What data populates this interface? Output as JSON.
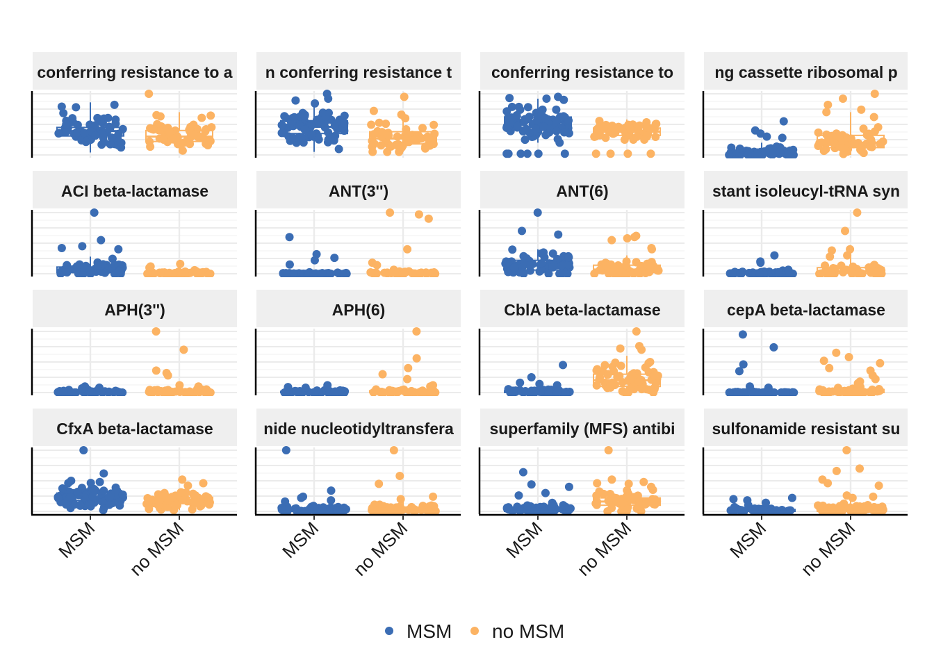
{
  "chart_data": {
    "type": "box-jitter",
    "grid": true,
    "legend_position": "bottom",
    "categories": [
      "MSM",
      "no MSM"
    ],
    "colors": {
      "MSM": "#3b6db4",
      "no MSM": "#fcb363"
    },
    "legend": [
      {
        "label": "MSM",
        "color": "#3b6db4"
      },
      {
        "label": "no MSM",
        "color": "#fcb363"
      }
    ],
    "panels": [
      {
        "title": "conferring resistance to a",
        "boxes": [
          {
            "q1": 0.31,
            "median": 0.39,
            "q3": 0.45,
            "min": 0.04,
            "max": 0.86
          },
          {
            "q1": 0.22,
            "median": 0.3,
            "q3": 0.4,
            "min": 0.04,
            "max": 0.7
          }
        ],
        "points": [
          {
            "n": 70,
            "lo": 0.04,
            "hi": 0.84,
            "mode": 0.4,
            "spread": 0.14,
            "out": [
              0.82,
              0.78,
              0.79
            ]
          },
          {
            "n": 55,
            "lo": 0.04,
            "hi": 0.7,
            "mode": 0.3,
            "spread": 0.13,
            "out": [
              1.0,
              0.65,
              0.63
            ]
          }
        ]
      },
      {
        "title": "n conferring resistance t",
        "boxes": [
          {
            "q1": 0.35,
            "median": 0.46,
            "q3": 0.56,
            "min": 0.05,
            "max": 0.85
          },
          {
            "q1": 0.18,
            "median": 0.27,
            "q3": 0.38,
            "min": 0.05,
            "max": 0.65
          }
        ],
        "points": [
          {
            "n": 75,
            "lo": 0.05,
            "hi": 0.92,
            "mode": 0.46,
            "spread": 0.15,
            "out": [
              1.0,
              0.92,
              0.89
            ]
          },
          {
            "n": 55,
            "lo": 0.05,
            "hi": 0.7,
            "mode": 0.27,
            "spread": 0.13,
            "out": [
              0.95,
              0.72,
              0.6
            ]
          }
        ]
      },
      {
        "title": "conferring resistance to",
        "boxes": [
          {
            "q1": 0.45,
            "median": 0.54,
            "q3": 0.62,
            "min": 0.2,
            "max": 0.92
          },
          {
            "q1": 0.32,
            "median": 0.38,
            "q3": 0.44,
            "min": 0.2,
            "max": 0.58
          }
        ],
        "points": [
          {
            "n": 80,
            "lo": 0.22,
            "hi": 0.93,
            "mode": 0.54,
            "spread": 0.12,
            "out": [
              0.02,
              0.02,
              0.02,
              0.02,
              0.02,
              0.02,
              0.2,
              0.92,
              0.95,
              0.9
            ]
          },
          {
            "n": 55,
            "lo": 0.25,
            "hi": 0.58,
            "mode": 0.38,
            "spread": 0.08,
            "out": [
              0.02,
              0.02,
              0.02,
              0.02
            ]
          }
        ]
      },
      {
        "title": "ng cassette ribosomal p",
        "boxes": [
          {
            "q1": 0.0,
            "median": 0.03,
            "q3": 0.08,
            "min": 0.0,
            "max": 0.2
          },
          {
            "q1": 0.12,
            "median": 0.2,
            "q3": 0.32,
            "min": 0.0,
            "max": 0.7
          }
        ],
        "points": [
          {
            "n": 60,
            "lo": 0.0,
            "hi": 0.18,
            "mode": 0.03,
            "spread": 0.04,
            "out": [
              0.55,
              0.4,
              0.35,
              0.3,
              0.28
            ]
          },
          {
            "n": 55,
            "lo": 0.0,
            "hi": 0.5,
            "mode": 0.2,
            "spread": 0.12,
            "out": [
              1.0,
              0.92,
              0.82,
              0.74,
              0.7,
              0.62
            ]
          }
        ]
      },
      {
        "title": "ACI beta-lactamase",
        "boxes": [
          {
            "q1": 0.02,
            "median": 0.06,
            "q3": 0.11,
            "min": 0.0,
            "max": 0.28
          },
          {
            "q1": 0.0,
            "median": 0.01,
            "q3": 0.03,
            "min": 0.0,
            "max": 0.08
          }
        ],
        "points": [
          {
            "n": 60,
            "lo": 0.0,
            "hi": 0.3,
            "mode": 0.06,
            "spread": 0.06,
            "out": [
              1.0,
              0.55,
              0.45,
              0.42,
              0.4
            ]
          },
          {
            "n": 45,
            "lo": 0.0,
            "hi": 0.09,
            "mode": 0.01,
            "spread": 0.02,
            "out": [
              0.16,
              0.12,
              0.1
            ]
          }
        ]
      },
      {
        "title": "ANT(3'')",
        "boxes": [
          {
            "q1": 0.0,
            "median": 0.0,
            "q3": 0.02,
            "min": 0.0,
            "max": 0.04
          },
          {
            "q1": 0.0,
            "median": 0.0,
            "q3": 0.03,
            "min": 0.0,
            "max": 0.06
          }
        ],
        "points": [
          {
            "n": 45,
            "lo": 0.0,
            "hi": 0.04,
            "mode": 0.0,
            "spread": 0.01,
            "out": [
              0.6,
              0.32,
              0.26,
              0.22,
              0.15
            ]
          },
          {
            "n": 40,
            "lo": 0.0,
            "hi": 0.08,
            "mode": 0.01,
            "spread": 0.02,
            "out": [
              1.0,
              0.97,
              0.9,
              0.4,
              0.18,
              0.14
            ]
          }
        ]
      },
      {
        "title": "ANT(6)",
        "boxes": [
          {
            "q1": 0.06,
            "median": 0.14,
            "q3": 0.22,
            "min": 0.0,
            "max": 0.4
          },
          {
            "q1": 0.02,
            "median": 0.07,
            "q3": 0.14,
            "min": 0.0,
            "max": 0.3
          }
        ],
        "points": [
          {
            "n": 75,
            "lo": 0.0,
            "hi": 0.44,
            "mode": 0.14,
            "spread": 0.1,
            "out": [
              1.0,
              0.7,
              0.64
            ]
          },
          {
            "n": 55,
            "lo": 0.0,
            "hi": 0.3,
            "mode": 0.07,
            "spread": 0.07,
            "out": [
              0.62,
              0.6,
              0.58,
              0.55,
              0.42,
              0.4
            ]
          }
        ]
      },
      {
        "title": "stant isoleucyl-tRNA syn",
        "boxes": [
          {
            "q1": 0.0,
            "median": 0.01,
            "q3": 0.03,
            "min": 0.0,
            "max": 0.06
          },
          {
            "q1": 0.01,
            "median": 0.04,
            "q3": 0.1,
            "min": 0.0,
            "max": 0.35
          }
        ],
        "points": [
          {
            "n": 45,
            "lo": 0.0,
            "hi": 0.08,
            "mode": 0.01,
            "spread": 0.02,
            "out": [
              0.3,
              0.2,
              0.18
            ]
          },
          {
            "n": 45,
            "lo": 0.0,
            "hi": 0.2,
            "mode": 0.04,
            "spread": 0.05,
            "out": [
              1.0,
              0.7,
              0.4,
              0.38,
              0.3,
              0.28
            ]
          }
        ]
      },
      {
        "title": "APH(3'')",
        "boxes": [
          {
            "q1": 0.0,
            "median": 0.01,
            "q3": 0.02,
            "min": 0.0,
            "max": 0.05
          },
          {
            "q1": 0.0,
            "median": 0.01,
            "q3": 0.03,
            "min": 0.0,
            "max": 0.08
          }
        ],
        "points": [
          {
            "n": 50,
            "lo": 0.0,
            "hi": 0.06,
            "mode": 0.01,
            "spread": 0.015,
            "out": [
              0.1,
              0.08,
              0.07
            ]
          },
          {
            "n": 45,
            "lo": 0.0,
            "hi": 0.08,
            "mode": 0.01,
            "spread": 0.02,
            "out": [
              1.0,
              0.7,
              0.36,
              0.32,
              0.28,
              0.12,
              0.1
            ]
          }
        ]
      },
      {
        "title": "APH(6)",
        "boxes": [
          {
            "q1": 0.0,
            "median": 0.01,
            "q3": 0.02,
            "min": 0.0,
            "max": 0.05
          },
          {
            "q1": 0.0,
            "median": 0.01,
            "q3": 0.03,
            "min": 0.0,
            "max": 0.08
          }
        ],
        "points": [
          {
            "n": 50,
            "lo": 0.0,
            "hi": 0.07,
            "mode": 0.01,
            "spread": 0.015,
            "out": [
              0.12,
              0.09,
              0.08
            ]
          },
          {
            "n": 45,
            "lo": 0.0,
            "hi": 0.1,
            "mode": 0.01,
            "spread": 0.02,
            "out": [
              1.0,
              0.56,
              0.4,
              0.3,
              0.22,
              0.12,
              0.1
            ]
          }
        ]
      },
      {
        "title": "CblA beta-lactamase",
        "boxes": [
          {
            "q1": 0.0,
            "median": 0.01,
            "q3": 0.03,
            "min": 0.0,
            "max": 0.06
          },
          {
            "q1": 0.1,
            "median": 0.2,
            "q3": 0.3,
            "min": 0.0,
            "max": 0.6
          }
        ],
        "points": [
          {
            "n": 50,
            "lo": 0.0,
            "hi": 0.07,
            "mode": 0.01,
            "spread": 0.02,
            "out": [
              0.45,
              0.25,
              0.16,
              0.14,
              0.12
            ]
          },
          {
            "n": 65,
            "lo": 0.0,
            "hi": 0.5,
            "mode": 0.2,
            "spread": 0.14,
            "out": [
              1.0,
              0.72,
              0.7,
              0.76,
              0.48
            ]
          }
        ]
      },
      {
        "title": "cepA beta-lactamase",
        "boxes": [
          {
            "q1": 0.0,
            "median": 0.0,
            "q3": 0.01,
            "min": 0.0,
            "max": 0.02
          },
          {
            "q1": 0.0,
            "median": 0.02,
            "q3": 0.05,
            "min": 0.0,
            "max": 0.12
          }
        ],
        "points": [
          {
            "n": 45,
            "lo": 0.0,
            "hi": 0.02,
            "mode": 0.0,
            "spread": 0.005,
            "out": [
              0.95,
              0.74,
              0.46,
              0.35,
              0.1,
              0.08
            ]
          },
          {
            "n": 45,
            "lo": 0.0,
            "hi": 0.12,
            "mode": 0.02,
            "spread": 0.03,
            "out": [
              0.65,
              0.58,
              0.52,
              0.48,
              0.4,
              0.36,
              0.28,
              0.22,
              0.18,
              0.15
            ]
          }
        ]
      },
      {
        "title": "CfxA beta-lactamase",
        "boxes": [
          {
            "q1": 0.18,
            "median": 0.24,
            "q3": 0.3,
            "min": 0.02,
            "max": 0.52
          },
          {
            "q1": 0.13,
            "median": 0.18,
            "q3": 0.23,
            "min": 0.02,
            "max": 0.36
          }
        ],
        "points": [
          {
            "n": 80,
            "lo": 0.02,
            "hi": 0.5,
            "mode": 0.24,
            "spread": 0.09,
            "out": [
              1.0,
              0.62,
              0.5,
              0.48
            ]
          },
          {
            "n": 65,
            "lo": 0.02,
            "hi": 0.36,
            "mode": 0.18,
            "spread": 0.07,
            "out": [
              0.52,
              0.46,
              0.42
            ]
          }
        ]
      },
      {
        "title": "nide nucleotidyltransfera",
        "boxes": [
          {
            "q1": 0.0,
            "median": 0.02,
            "q3": 0.05,
            "min": 0.0,
            "max": 0.1
          },
          {
            "q1": 0.0,
            "median": 0.03,
            "q3": 0.07,
            "min": 0.0,
            "max": 0.16
          }
        ],
        "points": [
          {
            "n": 55,
            "lo": 0.0,
            "hi": 0.1,
            "mode": 0.02,
            "spread": 0.03,
            "out": [
              1.0,
              0.34,
              0.24,
              0.22,
              0.18,
              0.16
            ]
          },
          {
            "n": 50,
            "lo": 0.0,
            "hi": 0.16,
            "mode": 0.03,
            "spread": 0.04,
            "out": [
              1.0,
              0.58,
              0.45,
              0.24,
              0.2
            ]
          }
        ]
      },
      {
        "title": "superfamily (MFS) antibi",
        "boxes": [
          {
            "q1": 0.0,
            "median": 0.03,
            "q3": 0.07,
            "min": 0.0,
            "max": 0.12
          },
          {
            "q1": 0.1,
            "median": 0.16,
            "q3": 0.22,
            "min": 0.0,
            "max": 0.4
          }
        ],
        "points": [
          {
            "n": 55,
            "lo": 0.0,
            "hi": 0.14,
            "mode": 0.03,
            "spread": 0.04,
            "out": [
              0.64,
              0.44,
              0.4,
              0.3,
              0.26
            ]
          },
          {
            "n": 60,
            "lo": 0.0,
            "hi": 0.36,
            "mode": 0.16,
            "spread": 0.08,
            "out": [
              1.0,
              0.52,
              0.48,
              0.46,
              0.45,
              0.4
            ]
          }
        ]
      },
      {
        "title": "sulfonamide resistant su",
        "boxes": [
          {
            "q1": 0.0,
            "median": 0.01,
            "q3": 0.03,
            "min": 0.0,
            "max": 0.06
          },
          {
            "q1": 0.0,
            "median": 0.03,
            "q3": 0.08,
            "min": 0.0,
            "max": 0.18
          }
        ],
        "points": [
          {
            "n": 45,
            "lo": 0.0,
            "hi": 0.08,
            "mode": 0.01,
            "spread": 0.02,
            "out": [
              0.22,
              0.2,
              0.18,
              0.14,
              0.1
            ]
          },
          {
            "n": 50,
            "lo": 0.0,
            "hi": 0.22,
            "mode": 0.03,
            "spread": 0.05,
            "out": [
              1.0,
              0.7,
              0.66,
              0.52,
              0.46,
              0.42,
              0.26,
              0.24,
              0.22
            ]
          }
        ]
      }
    ]
  }
}
